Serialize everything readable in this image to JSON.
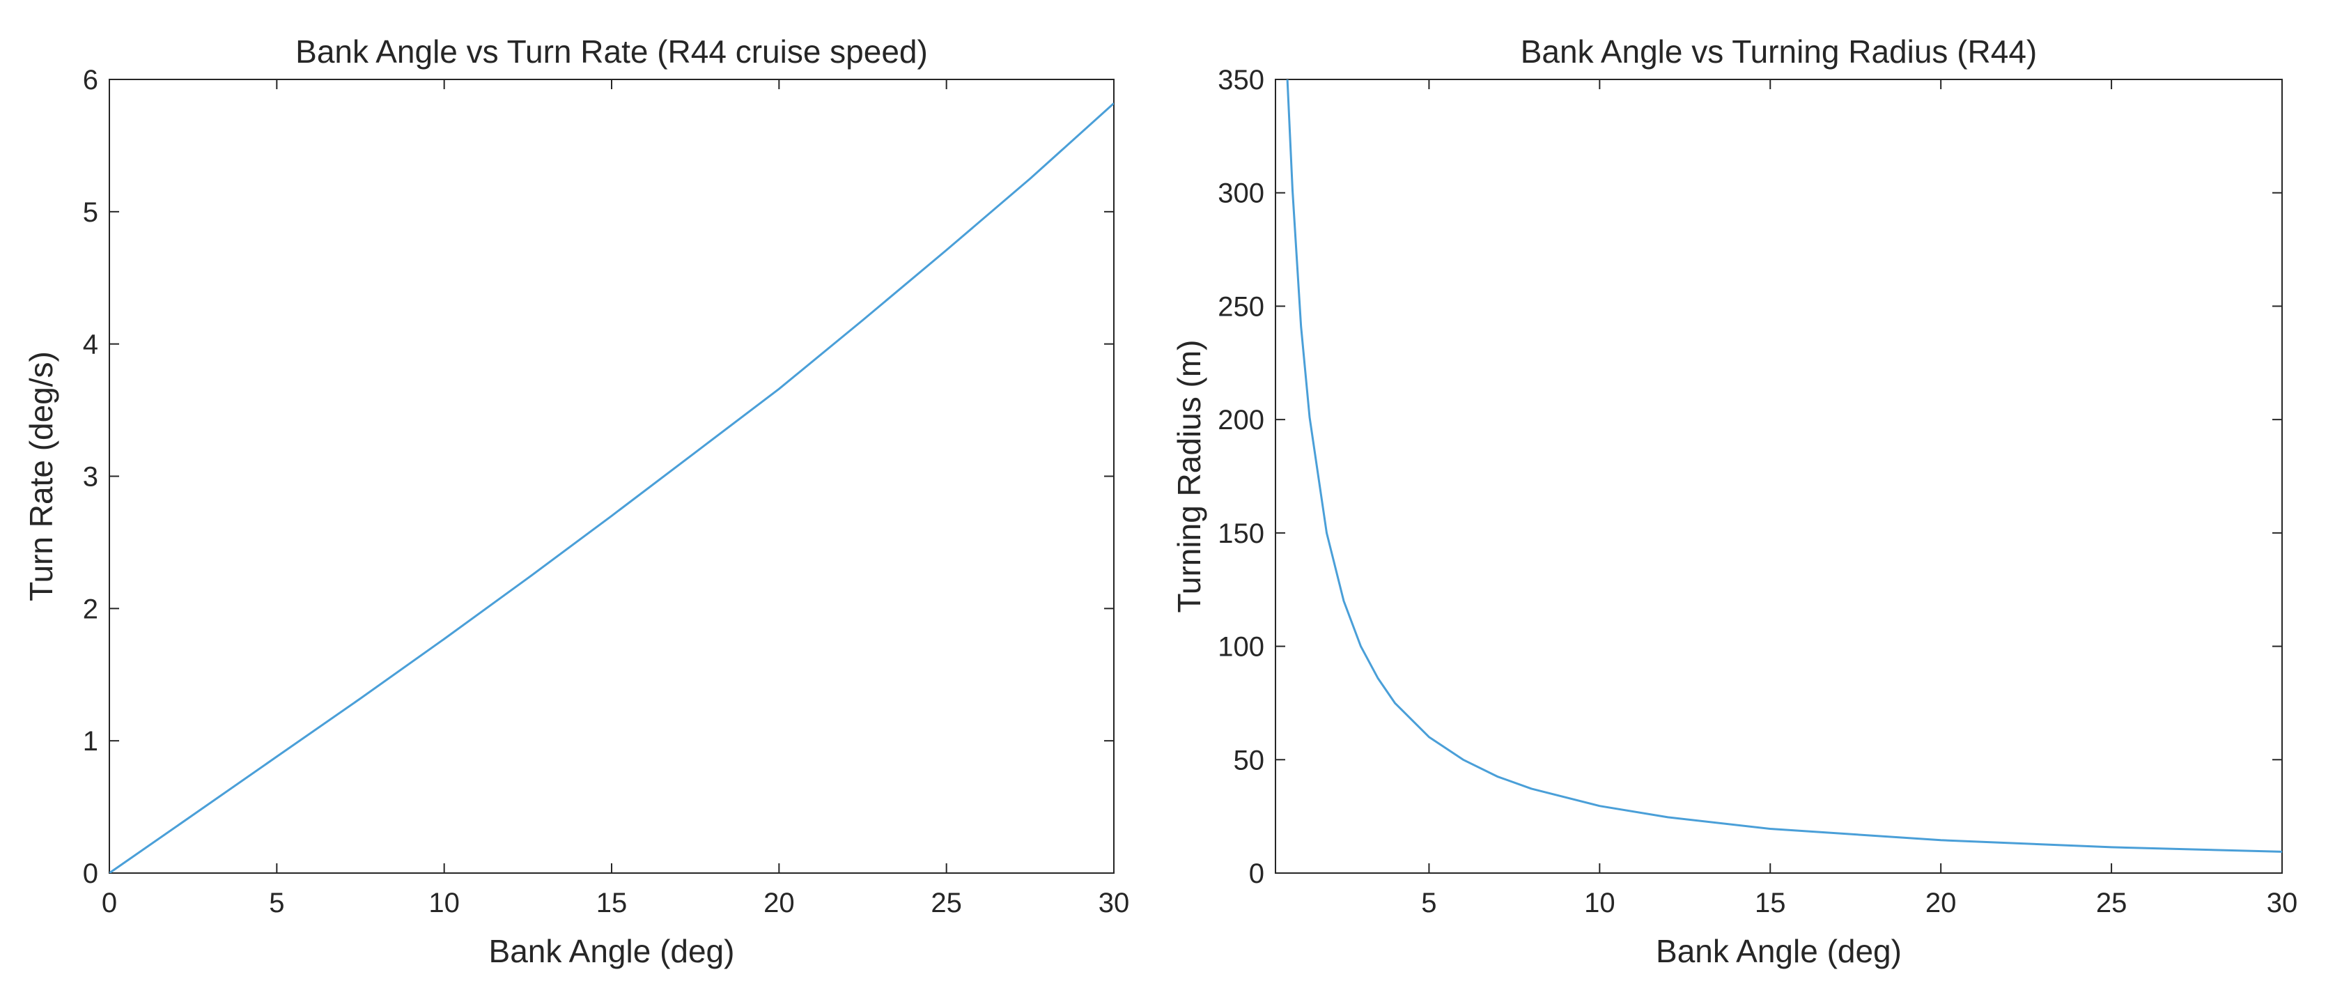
{
  "colors": {
    "line": "#4a9fd8",
    "axis": "#262626",
    "background": "#ffffff"
  },
  "chart_data": [
    {
      "type": "line",
      "title": "Bank Angle vs Turn Rate (R44 cruise speed)",
      "xlabel": "Bank Angle (deg)",
      "ylabel": "Turn Rate (deg/s)",
      "xlim": [
        0,
        30
      ],
      "ylim": [
        0,
        6
      ],
      "xticks": [
        0,
        5,
        10,
        15,
        20,
        25,
        30
      ],
      "yticks": [
        0,
        1,
        2,
        3,
        4,
        5,
        6
      ],
      "xticklabels": [
        "0",
        "5",
        "10",
        "15",
        "20",
        "25",
        "30"
      ],
      "yticklabels": [
        "0",
        "1",
        "2",
        "3",
        "4",
        "5",
        "6"
      ],
      "grid": false,
      "series": [
        {
          "x": [
            0,
            2.5,
            5,
            7.5,
            10,
            12.5,
            15,
            17.5,
            20,
            22.5,
            25,
            27.5,
            30
          ],
          "y": [
            0,
            0.44,
            0.88,
            1.32,
            1.77,
            2.23,
            2.7,
            3.18,
            3.66,
            4.18,
            4.71,
            5.25,
            5.82
          ]
        }
      ]
    },
    {
      "type": "line",
      "title": "Bank Angle vs Turning Radius (R44)",
      "xlabel": "Bank Angle (deg)",
      "ylabel": "Turning Radius (m)",
      "xlim": [
        0.5,
        30
      ],
      "ylim": [
        0,
        350
      ],
      "xticks": [
        5,
        10,
        15,
        20,
        25,
        30
      ],
      "yticks": [
        0,
        50,
        100,
        150,
        200,
        250,
        300,
        350
      ],
      "xticklabels": [
        "5",
        "10",
        "15",
        "20",
        "25",
        "30"
      ],
      "yticklabels": [
        "0",
        "50",
        "100",
        "150",
        "200",
        "250",
        "300",
        "350"
      ],
      "grid": false,
      "series": [
        {
          "x": [
            0.85,
            1,
            1.25,
            1.5,
            2,
            2.5,
            3,
            3.5,
            4,
            5,
            6,
            7,
            8,
            10,
            12,
            15,
            20,
            25,
            30
          ],
          "y": [
            350,
            301,
            241,
            201,
            150,
            120,
            100,
            86,
            75,
            60,
            50,
            42.6,
            37.2,
            29.6,
            24.6,
            19.5,
            14.5,
            11.4,
            9.4
          ]
        }
      ]
    }
  ]
}
